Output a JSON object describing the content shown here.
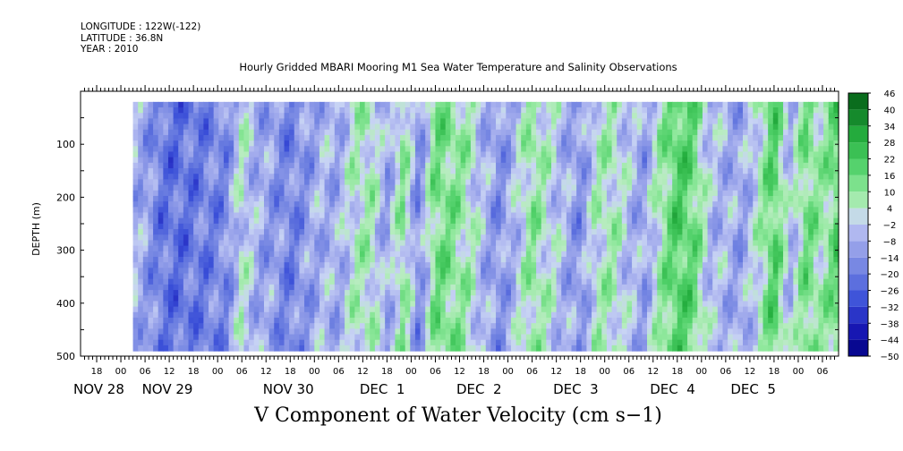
{
  "meta": {
    "longitude": "LONGITUDE : 122W(-122)",
    "latitude": "LATITUDE : 36.8N",
    "year": "YEAR : 2010"
  },
  "chart_data": {
    "type": "heatmap",
    "title": "Hourly Gridded MBARI Mooring M1 Sea Water Temperature and Salinity Observations",
    "caption": "V Component of Water Velocity (cm s−1)",
    "ylabel": "DEPTH (m)",
    "xlim_hours": [
      0,
      188
    ],
    "ylim": [
      0,
      500
    ],
    "y_inverted": true,
    "data_depth_range": [
      20,
      490
    ],
    "data_start_hour": 13,
    "y_ticks": [
      100,
      200,
      300,
      400,
      500
    ],
    "x_hour_ticks": [
      {
        "h": 4,
        "label": "18"
      },
      {
        "h": 10,
        "label": "00"
      },
      {
        "h": 16,
        "label": "06"
      },
      {
        "h": 22,
        "label": "12"
      },
      {
        "h": 28,
        "label": "18"
      },
      {
        "h": 34,
        "label": "00"
      },
      {
        "h": 40,
        "label": "06"
      },
      {
        "h": 46,
        "label": "12"
      },
      {
        "h": 52,
        "label": "18"
      },
      {
        "h": 58,
        "label": "00"
      },
      {
        "h": 64,
        "label": "06"
      },
      {
        "h": 70,
        "label": "12"
      },
      {
        "h": 76,
        "label": "18"
      },
      {
        "h": 82,
        "label": "00"
      },
      {
        "h": 88,
        "label": "06"
      },
      {
        "h": 94,
        "label": "12"
      },
      {
        "h": 100,
        "label": "18"
      },
      {
        "h": 106,
        "label": "00"
      },
      {
        "h": 112,
        "label": "06"
      },
      {
        "h": 118,
        "label": "12"
      },
      {
        "h": 124,
        "label": "18"
      },
      {
        "h": 130,
        "label": "00"
      },
      {
        "h": 136,
        "label": "06"
      },
      {
        "h": 142,
        "label": "12"
      },
      {
        "h": 148,
        "label": "18"
      },
      {
        "h": 154,
        "label": "00"
      },
      {
        "h": 160,
        "label": "06"
      },
      {
        "h": 166,
        "label": "12"
      },
      {
        "h": 172,
        "label": "18"
      },
      {
        "h": 178,
        "label": "00"
      },
      {
        "h": 184,
        "label": "06"
      },
      {
        "h": 190,
        "label": "12"
      }
    ],
    "date_labels": [
      {
        "h": 0,
        "label": "NOV 28"
      },
      {
        "h": 17,
        "label": "NOV 29"
      },
      {
        "h": 47,
        "label": "NOV 30"
      },
      {
        "h": 71,
        "label": "DEC  1"
      },
      {
        "h": 95,
        "label": "DEC  2"
      },
      {
        "h": 119,
        "label": "DEC  3"
      },
      {
        "h": 143,
        "label": "DEC  4"
      },
      {
        "h": 163,
        "label": "DEC  5"
      }
    ],
    "colorbar": {
      "levels": [
        -50,
        -44,
        -38,
        -32,
        -26,
        -20,
        -14,
        -8,
        -2,
        4,
        10,
        16,
        22,
        28,
        34,
        40,
        46
      ],
      "labels": [
        "46",
        "40",
        "34",
        "28",
        "22",
        "16",
        "10",
        "4",
        "−2",
        "−8",
        "−14",
        "−20",
        "−26",
        "−32",
        "−38",
        "−44",
        "−50"
      ],
      "colors": [
        {
          "v": -50,
          "c": "#000080"
        },
        {
          "v": -40,
          "c": "#1a1ab8"
        },
        {
          "v": -30,
          "c": "#3a4fd8"
        },
        {
          "v": -20,
          "c": "#6a7de0"
        },
        {
          "v": -12,
          "c": "#8f9be8"
        },
        {
          "v": -5,
          "c": "#b0b8f0"
        },
        {
          "v": 0,
          "c": "#c8d4f4"
        },
        {
          "v": 4,
          "c": "#b8ecc0"
        },
        {
          "v": 10,
          "c": "#8fe89c"
        },
        {
          "v": 20,
          "c": "#4fd068"
        },
        {
          "v": 30,
          "c": "#26b040"
        },
        {
          "v": 40,
          "c": "#0e7a24"
        },
        {
          "v": 50,
          "c": "#004d0e"
        }
      ]
    },
    "column_profile_hours": [
      13,
      16,
      20,
      24,
      28,
      32,
      36,
      40,
      44,
      48,
      52,
      56,
      60,
      64,
      68,
      72,
      76,
      80,
      84,
      88,
      92,
      96,
      100,
      104,
      108,
      112,
      116,
      120,
      124,
      128,
      132,
      136,
      140,
      144,
      148,
      152,
      156,
      160,
      164,
      168,
      172,
      176,
      180,
      184,
      188
    ],
    "column_profile_v": [
      -6,
      -10,
      -20,
      -22,
      -20,
      -18,
      -16,
      2,
      -8,
      -12,
      -18,
      -12,
      -6,
      -8,
      4,
      6,
      -10,
      10,
      -16,
      14,
      12,
      6,
      -6,
      -14,
      -4,
      10,
      2,
      -6,
      -14,
      4,
      6,
      -4,
      -10,
      8,
      20,
      16,
      -4,
      -6,
      -10,
      2,
      20,
      -6,
      14,
      6,
      18
    ]
  }
}
